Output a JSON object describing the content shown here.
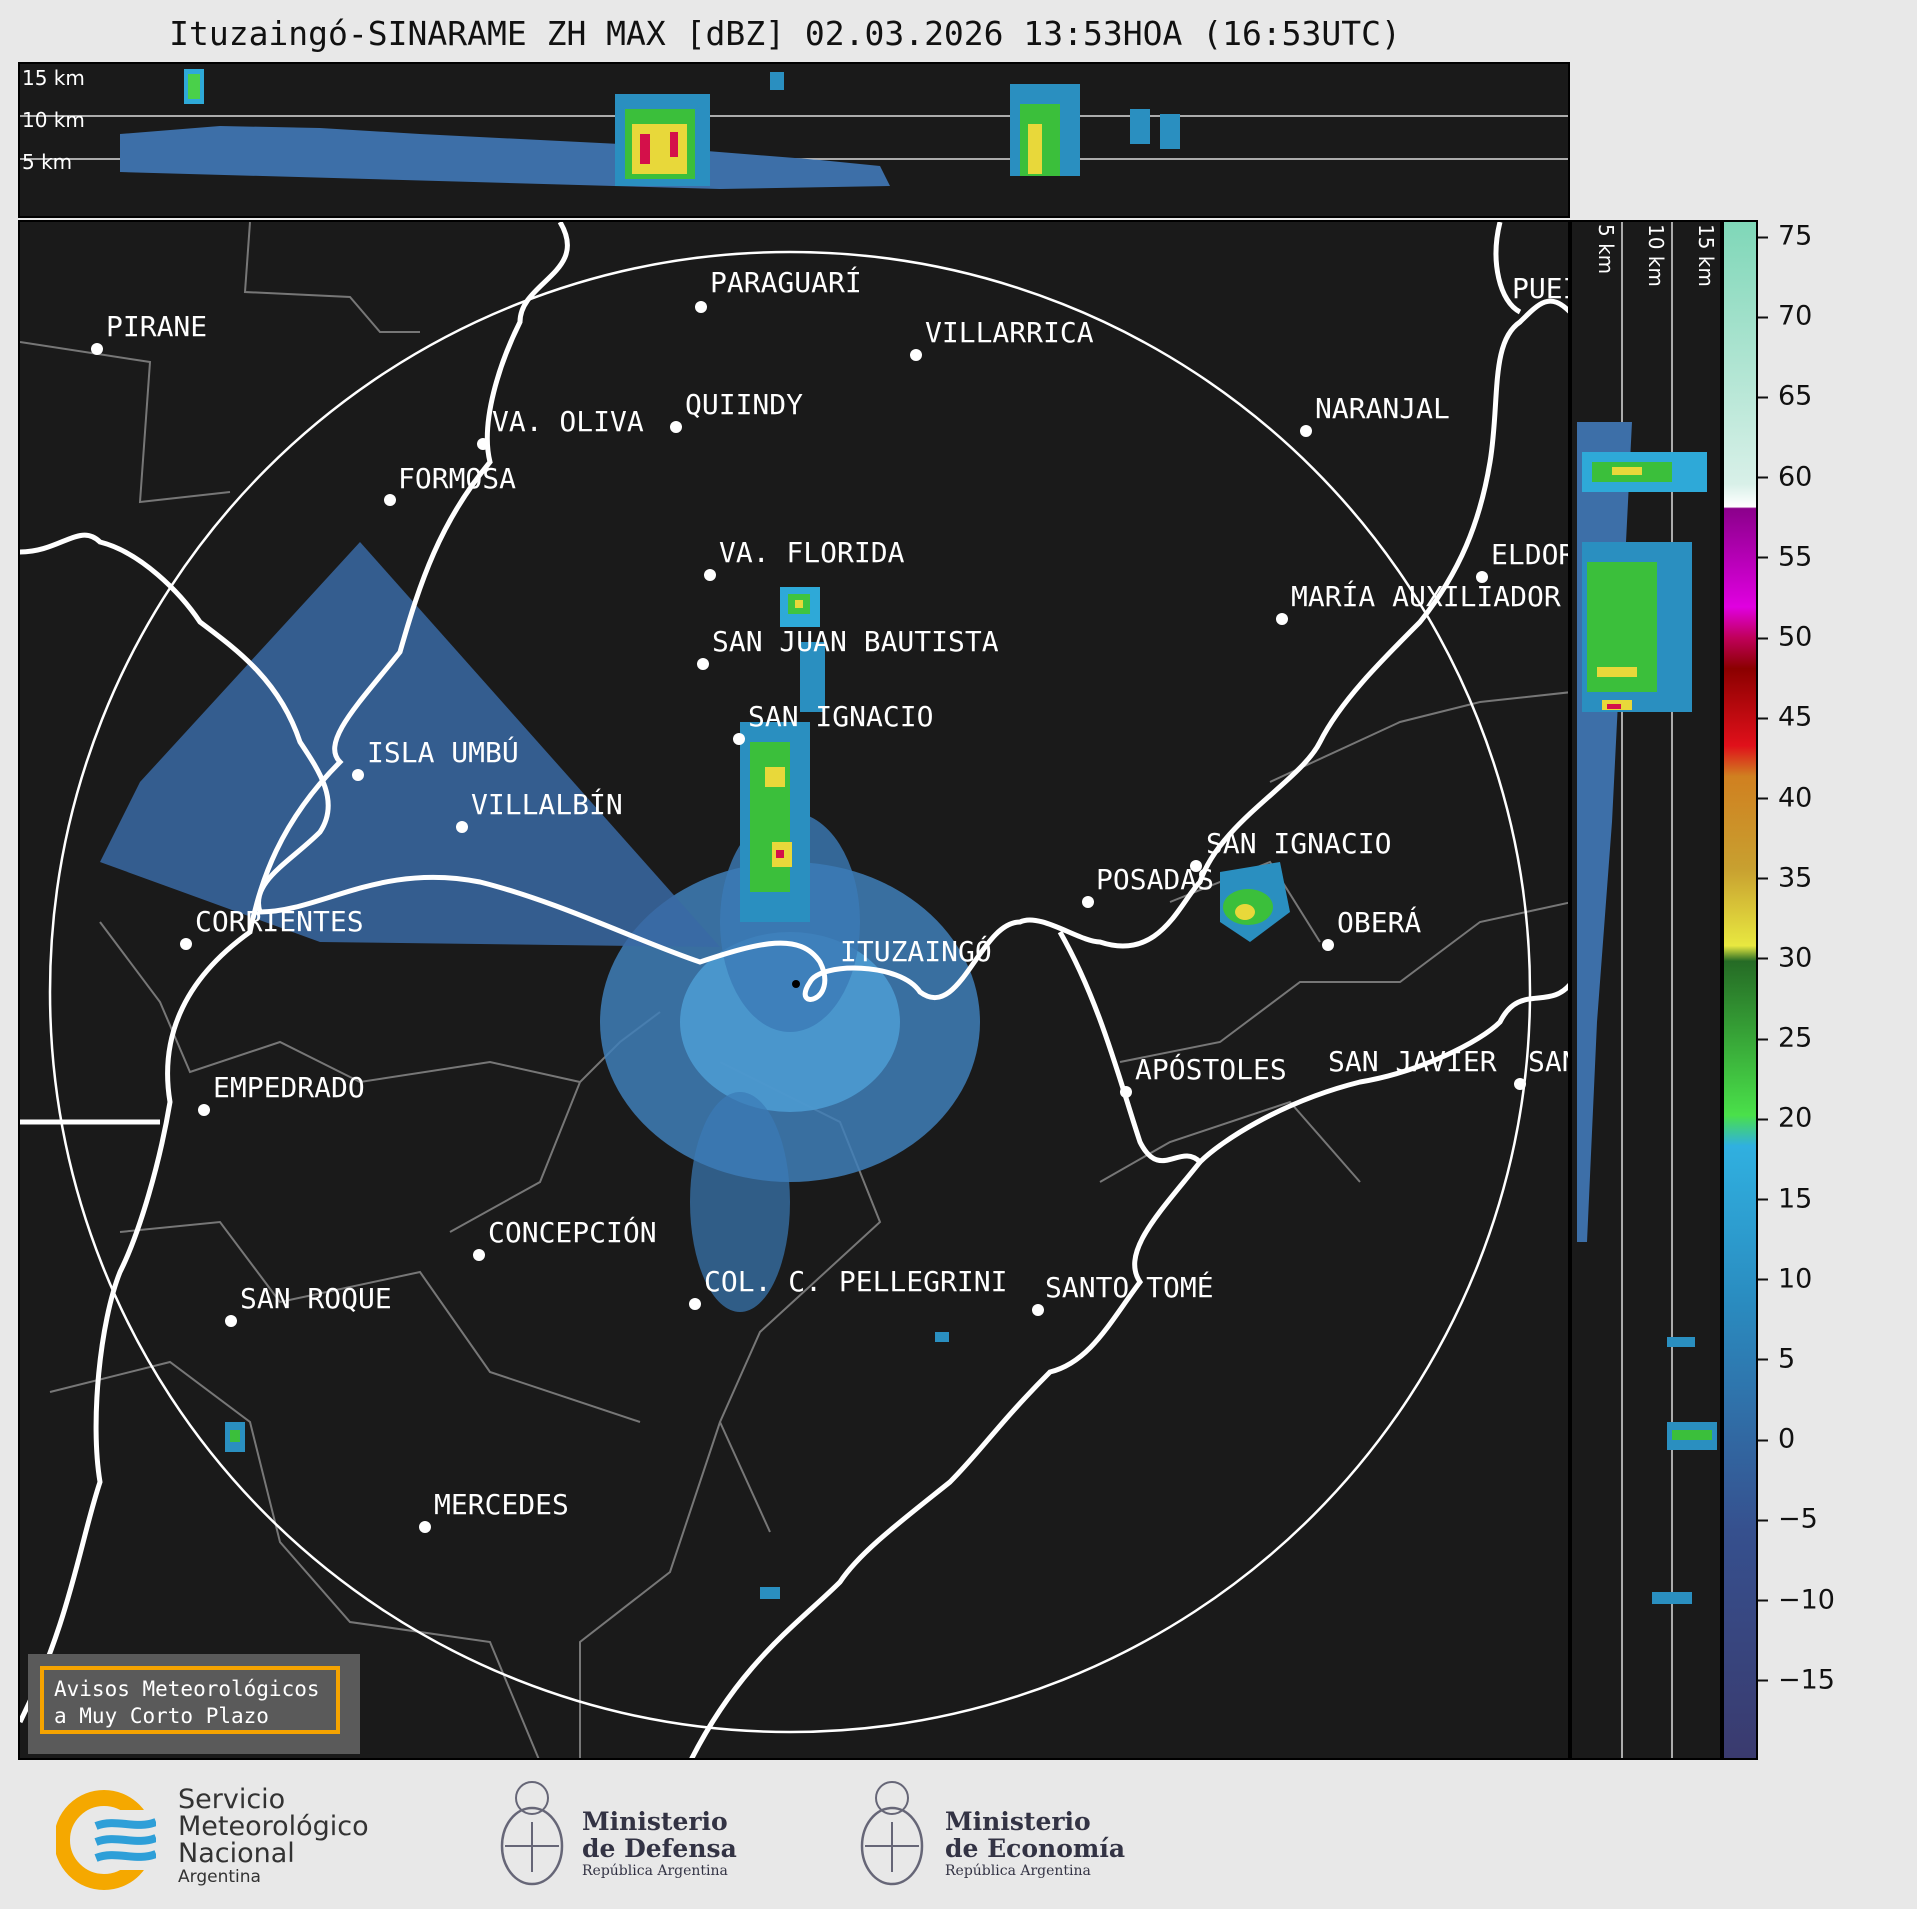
{
  "title": "Ituzaingó-SINARAME ZH MAX [dBZ] 02.03.2026 13:53HOA (16:53UTC)",
  "height_labels": [
    "15 km",
    "10 km",
    "5 km"
  ],
  "cities": [
    {
      "name": "PARAGUARÍ"
    },
    {
      "name": "PIRANE"
    },
    {
      "name": "VILLARRICA"
    },
    {
      "name": "QUIINDY"
    },
    {
      "name": "VA. OLIVA"
    },
    {
      "name": "NARANJAL"
    },
    {
      "name": "FORMOSA"
    },
    {
      "name": "VA. FLORIDA"
    },
    {
      "name": "ELDOR"
    },
    {
      "name": "MARÍA AUXILIADOR"
    },
    {
      "name": "SAN JUAN BAUTISTA"
    },
    {
      "name": "SAN IGNACIO"
    },
    {
      "name": "ISLA UMBÚ"
    },
    {
      "name": "VILLALBÍN"
    },
    {
      "name": "SAN IGNACIO"
    },
    {
      "name": "POSADAS"
    },
    {
      "name": "CORRIENTES"
    },
    {
      "name": "ITUZAINGÓ"
    },
    {
      "name": "OBERÁ"
    },
    {
      "name": "EMPEDRADO"
    },
    {
      "name": "APÓSTOLES"
    },
    {
      "name": "SAN JAVIER"
    },
    {
      "name": "SAN"
    },
    {
      "name": "CONCEPCIÓN"
    },
    {
      "name": "COL. C. PELLEGRINI"
    },
    {
      "name": "SAN ROQUE"
    },
    {
      "name": "SANTO TOMÉ"
    },
    {
      "name": "MERCEDES"
    },
    {
      "name": "PUEI"
    }
  ],
  "colorbar": {
    "unit": "dBZ",
    "ticks": [
      "75",
      "70",
      "65",
      "60",
      "55",
      "50",
      "45",
      "40",
      "35",
      "30",
      "25",
      "20",
      "15",
      "10",
      "5",
      "0",
      "−5",
      "−10",
      "−15"
    ],
    "range": [
      -20,
      76
    ]
  },
  "notice": {
    "line1": "Avisos Meteorológicos",
    "line2": "a Muy Corto Plazo"
  },
  "logos": {
    "smn": {
      "line1": "Servicio",
      "line2": "Meteorológico",
      "line3": "Nacional",
      "line4": "Argentina"
    },
    "defensa": {
      "line1": "Ministerio",
      "line2": "de Defensa",
      "line3": "República Argentina"
    },
    "economia": {
      "line1": "Ministerio",
      "line2": "de Economía",
      "line3": "República Argentina"
    }
  }
}
